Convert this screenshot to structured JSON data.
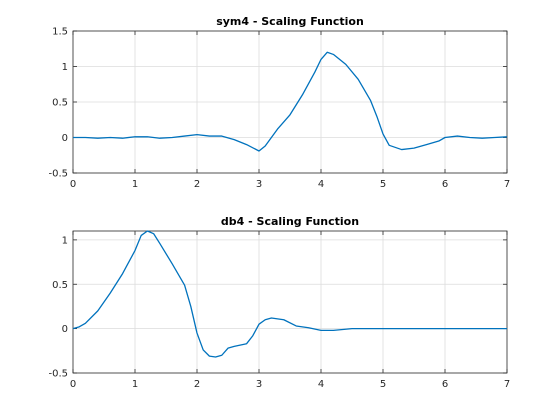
{
  "chart_data": [
    {
      "type": "line",
      "title": "sym4 - Scaling Function",
      "xlabel": "",
      "ylabel": "",
      "xlim": [
        0,
        7
      ],
      "ylim": [
        -0.5,
        1.5
      ],
      "xticks": [
        0,
        1,
        2,
        3,
        4,
        5,
        6,
        7
      ],
      "yticks": [
        -0.5,
        0,
        0.5,
        1,
        1.5
      ],
      "xtick_labels": [
        "0",
        "1",
        "2",
        "3",
        "4",
        "5",
        "6",
        "7"
      ],
      "ytick_labels": [
        "-0.5",
        "0",
        "0.5",
        "1",
        "1.5"
      ],
      "grid": true,
      "line_color": "#0072bd",
      "series": [
        {
          "x": [
            0,
            0.2,
            0.4,
            0.6,
            0.8,
            1.0,
            1.2,
            1.4,
            1.6,
            1.8,
            2.0,
            2.2,
            2.4,
            2.6,
            2.8,
            3.0,
            3.1,
            3.3,
            3.5,
            3.7,
            3.9,
            4.0,
            4.1,
            4.2,
            4.4,
            4.6,
            4.8,
            4.9,
            5.0,
            5.1,
            5.3,
            5.5,
            5.7,
            5.9,
            6.0,
            6.2,
            6.4,
            6.6,
            6.8,
            7.0
          ],
          "y": [
            0,
            0,
            -0.01,
            0,
            -0.01,
            0.01,
            0.01,
            -0.01,
            0,
            0.02,
            0.04,
            0.02,
            0.02,
            -0.03,
            -0.1,
            -0.19,
            -0.12,
            0.12,
            0.32,
            0.6,
            0.92,
            1.1,
            1.2,
            1.17,
            1.03,
            0.82,
            0.52,
            0.3,
            0.05,
            -0.11,
            -0.17,
            -0.15,
            -0.1,
            -0.05,
            0.0,
            0.02,
            0.0,
            -0.01,
            0.0,
            0.01
          ]
        }
      ]
    },
    {
      "type": "line",
      "title": "db4 - Scaling Function",
      "xlabel": "",
      "ylabel": "",
      "xlim": [
        0,
        7
      ],
      "ylim": [
        -0.5,
        1.1
      ],
      "xticks": [
        0,
        1,
        2,
        3,
        4,
        5,
        6,
        7
      ],
      "yticks": [
        -0.5,
        0,
        0.5,
        1
      ],
      "xtick_labels": [
        "0",
        "1",
        "2",
        "3",
        "4",
        "5",
        "6",
        "7"
      ],
      "ytick_labels": [
        "-0.5",
        "0",
        "0.5",
        "1"
      ],
      "grid": true,
      "line_color": "#0072bd",
      "series": [
        {
          "x": [
            0,
            0.1,
            0.2,
            0.4,
            0.6,
            0.8,
            1.0,
            1.1,
            1.2,
            1.3,
            1.4,
            1.6,
            1.8,
            1.9,
            2.0,
            2.1,
            2.2,
            2.3,
            2.4,
            2.5,
            2.6,
            2.8,
            2.9,
            3.0,
            3.1,
            3.2,
            3.4,
            3.6,
            3.8,
            4.0,
            4.2,
            4.5,
            5.0,
            5.5,
            6.0,
            6.5,
            7.0
          ],
          "y": [
            0,
            0.02,
            0.06,
            0.2,
            0.4,
            0.62,
            0.88,
            1.05,
            1.1,
            1.07,
            0.96,
            0.73,
            0.49,
            0.25,
            -0.05,
            -0.24,
            -0.31,
            -0.32,
            -0.3,
            -0.22,
            -0.2,
            -0.17,
            -0.08,
            0.05,
            0.1,
            0.12,
            0.1,
            0.03,
            0.01,
            -0.02,
            -0.02,
            0,
            0,
            0,
            0,
            0,
            0
          ]
        }
      ]
    }
  ]
}
